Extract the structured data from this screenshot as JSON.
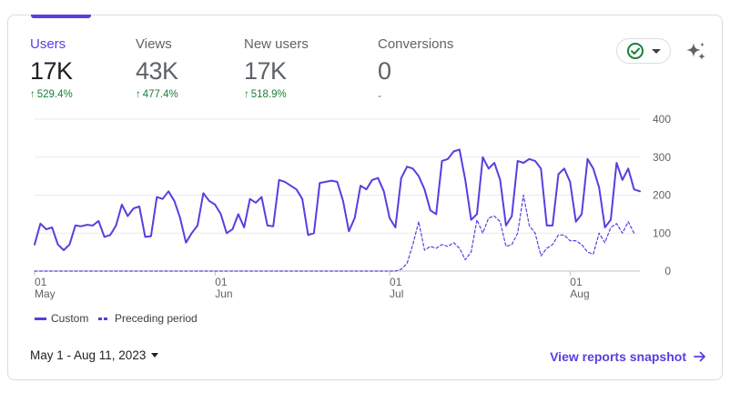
{
  "metrics": [
    {
      "label": "Users",
      "value": "17K",
      "change": "529.4%",
      "active": true
    },
    {
      "label": "Views",
      "value": "43K",
      "change": "477.4%",
      "active": false
    },
    {
      "label": "New users",
      "value": "17K",
      "change": "518.9%",
      "active": false
    },
    {
      "label": "Conversions",
      "value": "0",
      "change": "-",
      "active": false
    }
  ],
  "colors": {
    "accent": "#5b3de0",
    "positive": "#188038",
    "check": "#188038"
  },
  "legend": {
    "custom": "Custom",
    "preceding": "Preceding period"
  },
  "footer": {
    "date_range": "May 1 - Aug 11, 2023",
    "snapshot_link": "View reports snapshot"
  },
  "chart_data": {
    "type": "line",
    "ylim": [
      0,
      400
    ],
    "y_ticks": [
      "400",
      "300",
      "200",
      "100",
      "0"
    ],
    "x_ticks": [
      {
        "day": "01",
        "month": "May",
        "index": 0
      },
      {
        "day": "01",
        "month": "Jun",
        "index": 31
      },
      {
        "day": "01",
        "month": "Jul",
        "index": 61
      },
      {
        "day": "01",
        "month": "Aug",
        "index": 92
      }
    ],
    "series": [
      {
        "name": "Custom",
        "style": "solid",
        "values": [
          70,
          125,
          110,
          115,
          70,
          55,
          70,
          120,
          118,
          122,
          120,
          132,
          90,
          95,
          120,
          175,
          145,
          165,
          170,
          90,
          92,
          195,
          190,
          210,
          185,
          140,
          75,
          100,
          120,
          205,
          185,
          175,
          150,
          100,
          110,
          150,
          115,
          190,
          180,
          195,
          120,
          118,
          240,
          235,
          225,
          215,
          190,
          95,
          100,
          232,
          235,
          238,
          235,
          185,
          105,
          140,
          225,
          215,
          240,
          245,
          210,
          140,
          115,
          245,
          275,
          270,
          250,
          215,
          160,
          150,
          290,
          295,
          315,
          320,
          240,
          135,
          150,
          300,
          270,
          285,
          240,
          120,
          145,
          290,
          285,
          295,
          290,
          270,
          120,
          120,
          255,
          270,
          235,
          130,
          150,
          295,
          270,
          220,
          115,
          135,
          285,
          240,
          270,
          215,
          210
        ]
      },
      {
        "name": "Preceding period",
        "style": "dashed",
        "values": [
          0,
          0,
          0,
          0,
          0,
          0,
          0,
          0,
          0,
          0,
          0,
          0,
          0,
          0,
          0,
          0,
          0,
          0,
          0,
          0,
          0,
          0,
          0,
          0,
          0,
          0,
          0,
          0,
          0,
          0,
          0,
          0,
          0,
          0,
          0,
          0,
          0,
          0,
          0,
          0,
          0,
          0,
          0,
          0,
          0,
          0,
          0,
          0,
          0,
          0,
          0,
          0,
          0,
          0,
          0,
          0,
          0,
          0,
          0,
          0,
          0,
          0,
          0,
          5,
          20,
          70,
          130,
          55,
          65,
          60,
          70,
          65,
          75,
          60,
          30,
          50,
          135,
          100,
          140,
          145,
          130,
          65,
          70,
          100,
          200,
          120,
          100,
          40,
          60,
          70,
          95,
          95,
          80,
          80,
          70,
          50,
          45,
          100,
          75,
          115,
          125,
          100,
          130,
          100
        ]
      }
    ]
  }
}
